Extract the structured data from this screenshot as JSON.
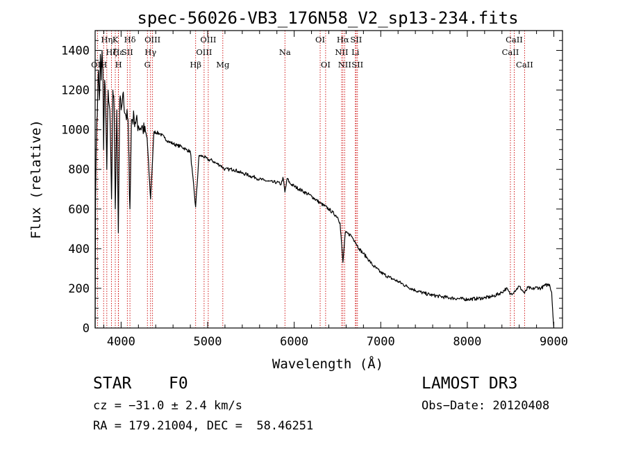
{
  "chart_data": {
    "type": "line",
    "title": "spec-56026-VB3_176N58_V2_sp13-234.fits",
    "xlabel": "Wavelength (Å)",
    "ylabel": "Flux (relative)",
    "xlim": [
      3700,
      9100
    ],
    "ylim": [
      0,
      1500
    ],
    "x_ticks": [
      4000,
      5000,
      6000,
      7000,
      8000,
      9000
    ],
    "y_ticks": [
      0,
      200,
      400,
      600,
      800,
      1000,
      1200,
      1400
    ],
    "grid": false,
    "series": [
      {
        "name": "spectrum",
        "points": [
          [
            3700,
            0
          ],
          [
            3705,
            650
          ],
          [
            3712,
            900
          ],
          [
            3720,
            1050
          ],
          [
            3730,
            1180
          ],
          [
            3740,
            1300
          ],
          [
            3750,
            1150
          ],
          [
            3760,
            1380
          ],
          [
            3770,
            1250
          ],
          [
            3780,
            1400
          ],
          [
            3790,
            1300
          ],
          [
            3798,
            900
          ],
          [
            3810,
            1250
          ],
          [
            3820,
            1150
          ],
          [
            3835,
            800
          ],
          [
            3850,
            1200
          ],
          [
            3870,
            1100
          ],
          [
            3889,
            650
          ],
          [
            3905,
            1200
          ],
          [
            3920,
            1100
          ],
          [
            3933,
            600
          ],
          [
            3950,
            1100
          ],
          [
            3968,
            480
          ],
          [
            3985,
            1150
          ],
          [
            4000,
            1100
          ],
          [
            4020,
            1180
          ],
          [
            4050,
            1080
          ],
          [
            4080,
            1050
          ],
          [
            4102,
            600
          ],
          [
            4120,
            1050
          ],
          [
            4150,
            1060
          ],
          [
            4200,
            1020
          ],
          [
            4250,
            1010
          ],
          [
            4300,
            960
          ],
          [
            4340,
            650
          ],
          [
            4380,
            990
          ],
          [
            4450,
            980
          ],
          [
            4500,
            960
          ],
          [
            4550,
            940
          ],
          [
            4600,
            930
          ],
          [
            4650,
            920
          ],
          [
            4700,
            915
          ],
          [
            4750,
            900
          ],
          [
            4800,
            890
          ],
          [
            4861,
            610
          ],
          [
            4900,
            870
          ],
          [
            4950,
            865
          ],
          [
            5000,
            850
          ],
          [
            5050,
            845
          ],
          [
            5100,
            830
          ],
          [
            5150,
            820
          ],
          [
            5200,
            800
          ],
          [
            5250,
            800
          ],
          [
            5300,
            800
          ],
          [
            5350,
            790
          ],
          [
            5400,
            780
          ],
          [
            5450,
            775
          ],
          [
            5500,
            765
          ],
          [
            5550,
            760
          ],
          [
            5600,
            750
          ],
          [
            5650,
            745
          ],
          [
            5700,
            740
          ],
          [
            5750,
            735
          ],
          [
            5800,
            735
          ],
          [
            5850,
            725
          ],
          [
            5870,
            760
          ],
          [
            5893,
            685
          ],
          [
            5920,
            755
          ],
          [
            5950,
            730
          ],
          [
            6000,
            715
          ],
          [
            6100,
            690
          ],
          [
            6200,
            665
          ],
          [
            6300,
            630
          ],
          [
            6400,
            600
          ],
          [
            6500,
            560
          ],
          [
            6530,
            530
          ],
          [
            6563,
            330
          ],
          [
            6590,
            480
          ],
          [
            6650,
            470
          ],
          [
            6700,
            440
          ],
          [
            6750,
            400
          ],
          [
            6800,
            375
          ],
          [
            6850,
            350
          ],
          [
            6900,
            320
          ],
          [
            7000,
            280
          ],
          [
            7100,
            255
          ],
          [
            7200,
            235
          ],
          [
            7300,
            210
          ],
          [
            7400,
            190
          ],
          [
            7500,
            175
          ],
          [
            7600,
            165
          ],
          [
            7700,
            158
          ],
          [
            7800,
            152
          ],
          [
            7900,
            148
          ],
          [
            8000,
            145
          ],
          [
            8100,
            148
          ],
          [
            8200,
            152
          ],
          [
            8300,
            160
          ],
          [
            8400,
            180
          ],
          [
            8450,
            200
          ],
          [
            8498,
            170
          ],
          [
            8542,
            185
          ],
          [
            8600,
            210
          ],
          [
            8662,
            175
          ],
          [
            8700,
            205
          ],
          [
            8750,
            195
          ],
          [
            8800,
            205
          ],
          [
            8850,
            200
          ],
          [
            8900,
            215
          ],
          [
            8950,
            220
          ],
          [
            8975,
            180
          ],
          [
            8990,
            60
          ],
          [
            9000,
            0
          ]
        ]
      }
    ],
    "lines": [
      {
        "wavelength": 3727,
        "label": "OII",
        "row": 2
      },
      {
        "wavelength": 3798,
        "label": "H",
        "row": 2
      },
      {
        "wavelength": 3835,
        "label": "Hη",
        "row": 0
      },
      {
        "wavelength": 3889,
        "label": "Hζ",
        "row": 1
      },
      {
        "wavelength": 3933,
        "label": "K",
        "row": 0
      },
      {
        "wavelength": 3968,
        "label": "Hε",
        "row": 1
      },
      {
        "wavelength": 3970,
        "label": "H",
        "row": 2
      },
      {
        "wavelength": 4072,
        "label": "SII",
        "row": 1
      },
      {
        "wavelength": 4102,
        "label": "Hδ",
        "row": 0
      },
      {
        "wavelength": 4304,
        "label": "G",
        "row": 2
      },
      {
        "wavelength": 4340,
        "label": "Hγ",
        "row": 1
      },
      {
        "wavelength": 4363,
        "label": "OIII",
        "row": 0
      },
      {
        "wavelength": 4861,
        "label": "Hβ",
        "row": 2
      },
      {
        "wavelength": 4959,
        "label": "OIII",
        "row": 1
      },
      {
        "wavelength": 5007,
        "label": "OIII",
        "row": 0
      },
      {
        "wavelength": 5175,
        "label": "Mg",
        "row": 2
      },
      {
        "wavelength": 5893,
        "label": "Na",
        "row": 1
      },
      {
        "wavelength": 6300,
        "label": "OI",
        "row": 0
      },
      {
        "wavelength": 6363,
        "label": "OI",
        "row": 2
      },
      {
        "wavelength": 6548,
        "label": "NII",
        "row": 1
      },
      {
        "wavelength": 6563,
        "label": "Hα",
        "row": 0
      },
      {
        "wavelength": 6583,
        "label": "NII",
        "row": 2
      },
      {
        "wavelength": 6707,
        "label": "Li",
        "row": 1
      },
      {
        "wavelength": 6716,
        "label": "SII",
        "row": 0
      },
      {
        "wavelength": 6731,
        "label": "SII",
        "row": 2
      },
      {
        "wavelength": 8498,
        "label": "CaII",
        "row": 1
      },
      {
        "wavelength": 8542,
        "label": "CaII",
        "row": 0
      },
      {
        "wavelength": 8662,
        "label": "CaII",
        "row": 2
      }
    ]
  },
  "info": {
    "object_type": "STAR",
    "subclass": "F0",
    "survey": "LAMOST DR3",
    "cz": "cz = −31.0 ± 2.4 km/s",
    "obs_date": "Obs−Date: 20120408",
    "coords": "RA = 179.21004, DEC =  58.46251"
  },
  "colors": {
    "spectrum": "#000000",
    "line_markers": "#cc0000",
    "axes": "#000000"
  }
}
